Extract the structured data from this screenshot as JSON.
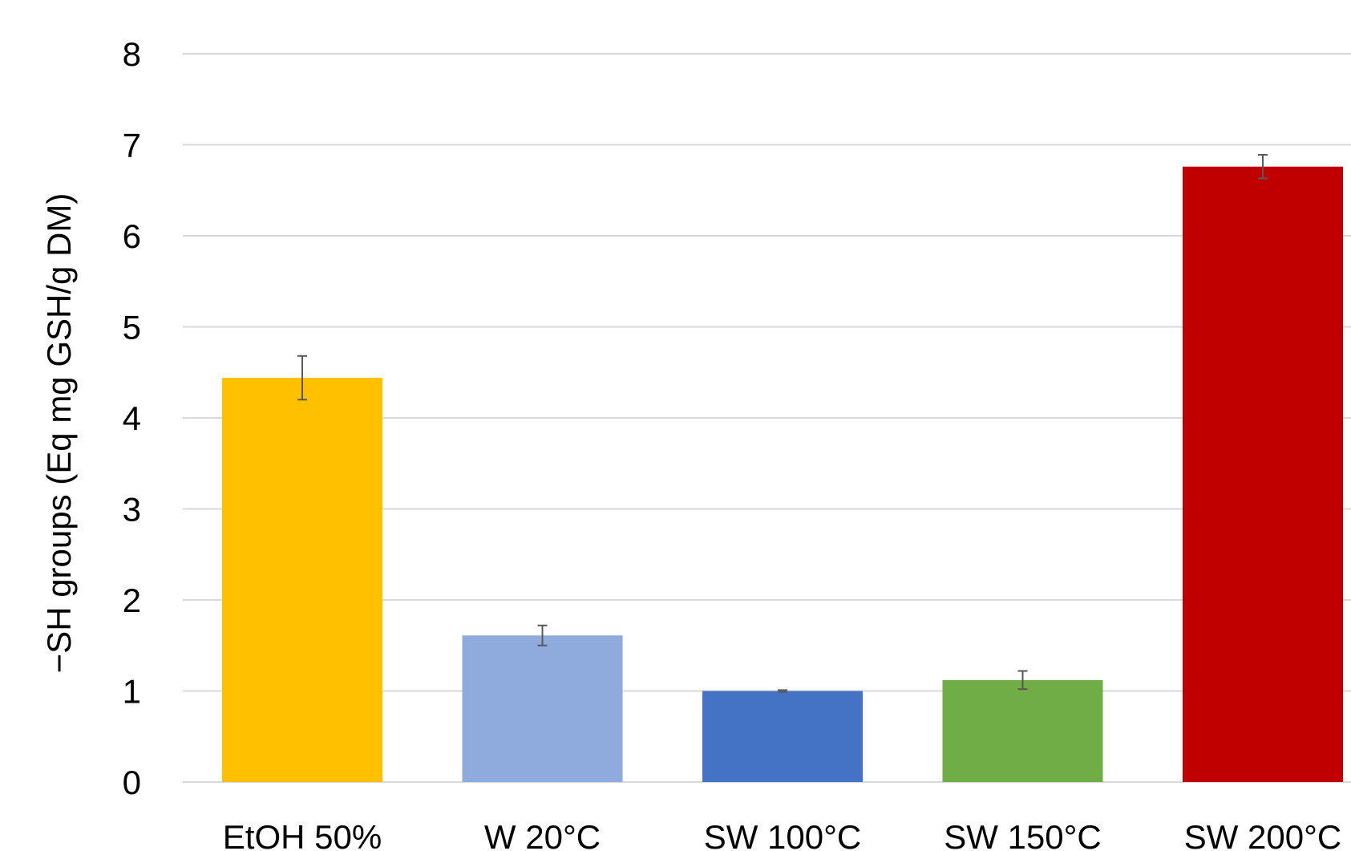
{
  "chart_data": {
    "type": "bar",
    "title": "",
    "xlabel": "",
    "ylabel": "−SH groups (Eq mg GSH/g DM)",
    "ylim": [
      0,
      8
    ],
    "yticks": [
      0,
      1,
      2,
      3,
      4,
      5,
      6,
      7,
      8
    ],
    "grid": true,
    "legend": "none",
    "categories": [
      "EtOH 50%",
      "W 20°C",
      "SW 100°C",
      "SW 150°C",
      "SW 200°C"
    ],
    "values": [
      4.44,
      1.61,
      1.0,
      1.12,
      6.76
    ],
    "errors": [
      0.24,
      0.11,
      0.01,
      0.1,
      0.13
    ],
    "colors": [
      "#ffc000",
      "#8faadc",
      "#4472c4",
      "#70ad47",
      "#c00000"
    ]
  }
}
